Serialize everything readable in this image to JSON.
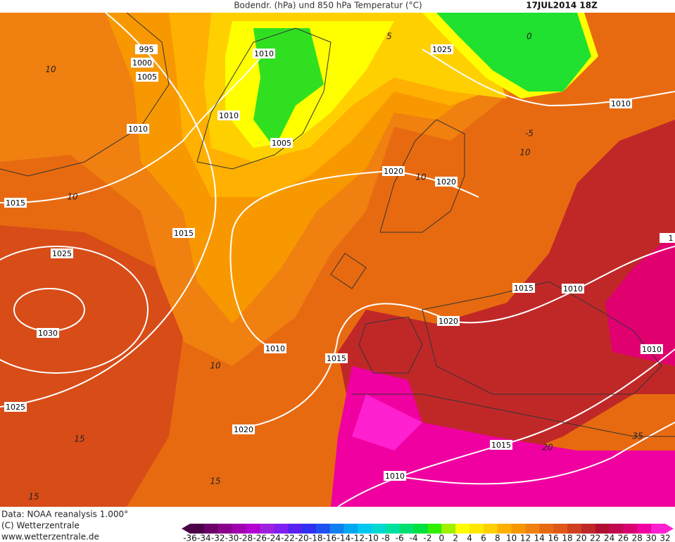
{
  "header": {
    "title": "Bodendr. (hPa) und 850 hPa Temperatur (°C)",
    "date": "17JUL2014 18Z"
  },
  "isobar_labels": [
    "995",
    "1000",
    "1005",
    "1010",
    "1010",
    "1010",
    "1005",
    "1025",
    "1010",
    "1020",
    "1020",
    "1015",
    "1015",
    "1025",
    "1030",
    "1015",
    "1010",
    "1020",
    "1010",
    "1015",
    "1010",
    "1025",
    "1020",
    "1015",
    "1010",
    "1"
  ],
  "isotherm_labels": [
    "10",
    "10",
    "5",
    "0",
    "-5",
    "10",
    "10",
    "10",
    "15",
    "15",
    "15",
    "20",
    "35"
  ],
  "footer": [
    "Data: NOAA reanalysis 1.000°",
    "(C) Wetterzentrale",
    "www.wetterzentrale.de"
  ],
  "colorbar": {
    "ticks": [
      "-36",
      "-34",
      "-32",
      "-30",
      "-28",
      "-26",
      "-24",
      "-22",
      "-20",
      "-18",
      "-16",
      "-14",
      "-12",
      "-10",
      "-8",
      "-6",
      "-4",
      "-2",
      "0",
      "2",
      "4",
      "6",
      "8",
      "10",
      "12",
      "14",
      "16",
      "18",
      "20",
      "22",
      "24",
      "26",
      "28",
      "30",
      "32"
    ],
    "colors": [
      "#4b0048",
      "#6a0068",
      "#8a008a",
      "#a000b0",
      "#b400d0",
      "#a020e0",
      "#8020f0",
      "#5a20f0",
      "#3030f0",
      "#2050f0",
      "#1080f0",
      "#00a8f0",
      "#00c8f0",
      "#00d8d0",
      "#00e0a0",
      "#00e070",
      "#00e040",
      "#30f000",
      "#a0f000",
      "#ffff00",
      "#ffe800",
      "#ffd000",
      "#ffb000",
      "#f89800",
      "#f08010",
      "#e86a10",
      "#e05818",
      "#d04020",
      "#c02828",
      "#b01030",
      "#c00850",
      "#d80070",
      "#f000a0",
      "#ff20d0"
    ]
  }
}
